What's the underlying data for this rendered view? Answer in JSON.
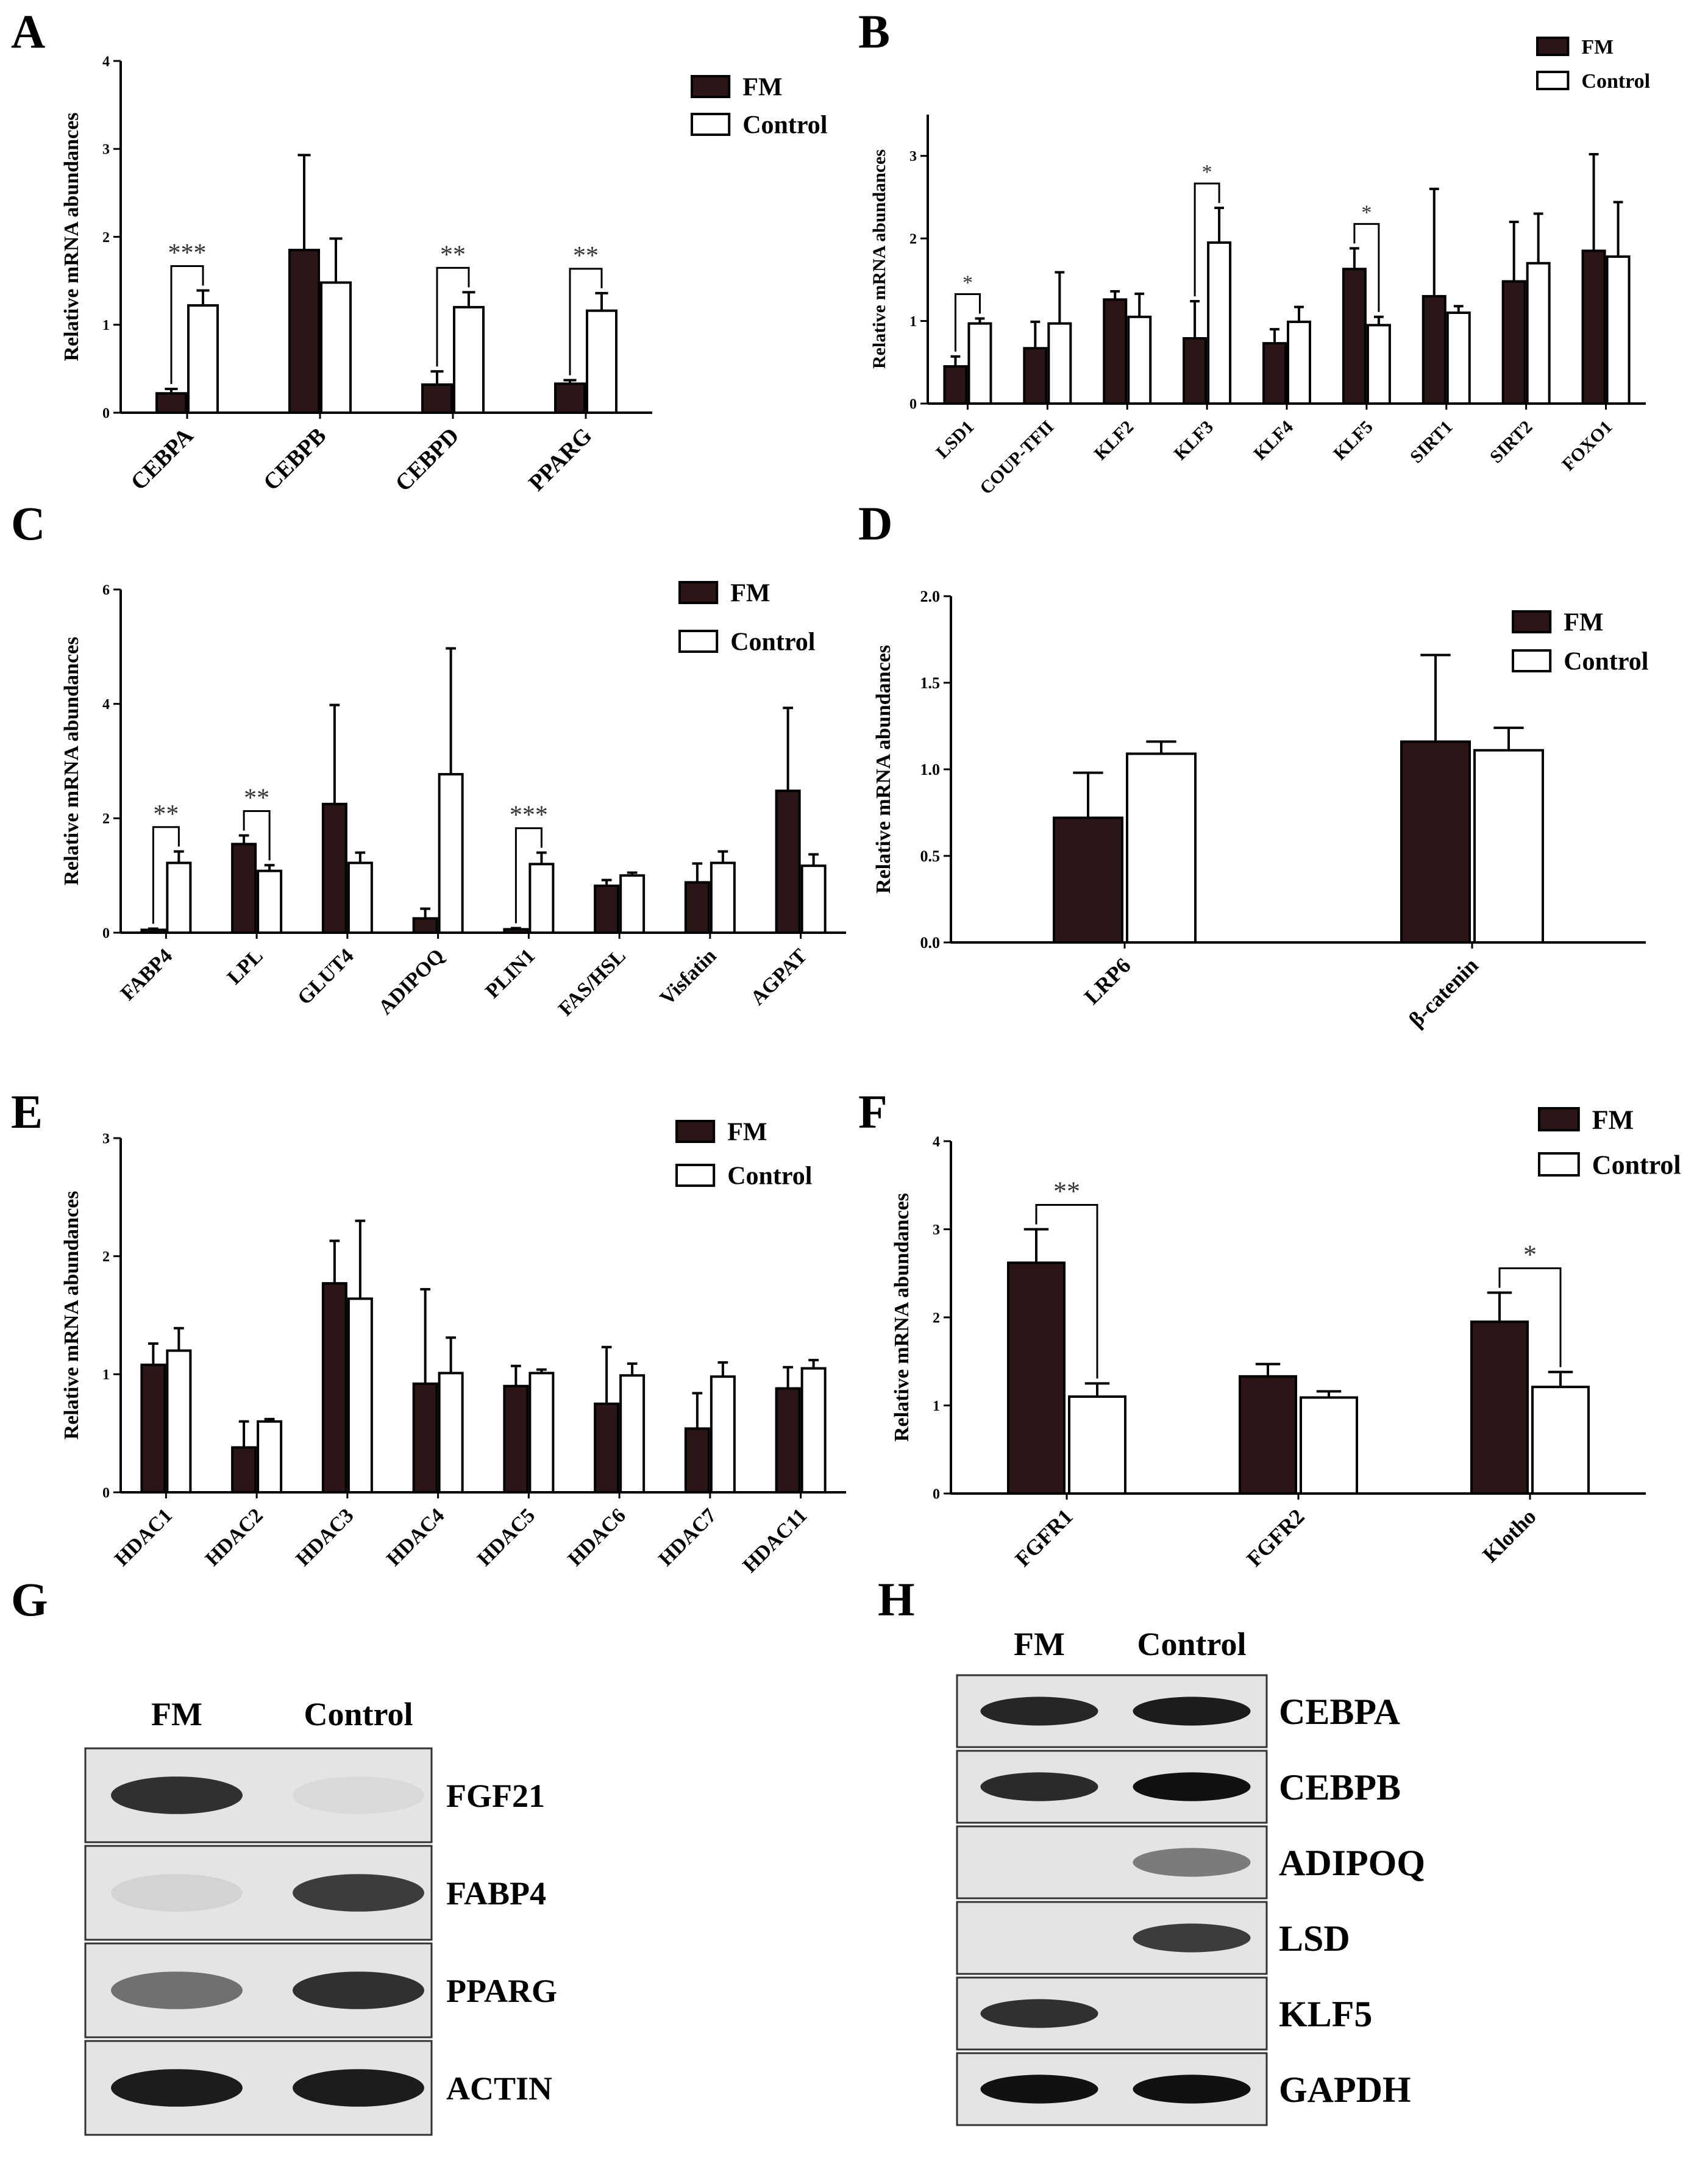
{
  "colors": {
    "fm": "#2a1616",
    "control": "#ffffff",
    "axis": "#000000",
    "sig": "#333333"
  },
  "panel_labels": [
    "A",
    "B",
    "C",
    "D",
    "E",
    "F",
    "G",
    "H"
  ],
  "chart_data": [
    {
      "panel": "A",
      "type": "bar",
      "ylabel": "Relative mRNA abundances",
      "xlabel": "",
      "ylim": [
        0,
        4
      ],
      "yticks": [
        "0",
        "1",
        "2",
        "3",
        "4"
      ],
      "legend_position": "top-right",
      "legend_labels": [
        "FM",
        "Control"
      ],
      "categories": [
        "CEBPA",
        "CEBPB",
        "CEBPD",
        "PPARG"
      ],
      "series": [
        {
          "name": "FM",
          "values": [
            0.22,
            1.85,
            0.32,
            0.33
          ],
          "err": [
            0.05,
            1.08,
            0.15,
            0.04
          ]
        },
        {
          "name": "Control",
          "values": [
            1.22,
            1.48,
            1.2,
            1.16
          ],
          "err": [
            0.17,
            0.5,
            0.17,
            0.2
          ]
        }
      ],
      "significance": [
        {
          "category": "CEBPA",
          "label": "***"
        },
        {
          "category": "CEBPD",
          "label": "**"
        },
        {
          "category": "PPARG",
          "label": "**"
        }
      ]
    },
    {
      "panel": "B",
      "type": "bar",
      "ylabel": "Relative mRNA abundances",
      "xlabel": "",
      "ylim": [
        0,
        3.5
      ],
      "yticks": [
        "0",
        "1",
        "2",
        "3"
      ],
      "legend_position": "top-right",
      "legend_labels": [
        "FM",
        "Control"
      ],
      "categories": [
        "LSD1",
        "COUP-TFII",
        "KLF2",
        "KLF3",
        "KLF4",
        "KLF5",
        "SIRT1",
        "SIRT2",
        "FOXO1"
      ],
      "series": [
        {
          "name": "FM",
          "values": [
            0.45,
            0.67,
            1.26,
            0.79,
            0.73,
            1.63,
            1.3,
            1.48,
            1.85
          ],
          "err": [
            0.12,
            0.32,
            0.1,
            0.45,
            0.17,
            0.25,
            1.3,
            0.72,
            1.17
          ]
        },
        {
          "name": "Control",
          "values": [
            0.97,
            0.97,
            1.05,
            1.95,
            0.99,
            0.95,
            1.1,
            1.7,
            1.78
          ],
          "err": [
            0.06,
            0.62,
            0.28,
            0.42,
            0.18,
            0.1,
            0.08,
            0.6,
            0.66
          ]
        }
      ],
      "significance": [
        {
          "category": "LSD1",
          "label": "*"
        },
        {
          "category": "KLF3",
          "label": "*"
        },
        {
          "category": "KLF5",
          "label": "*"
        }
      ]
    },
    {
      "panel": "C",
      "type": "bar",
      "ylabel": "Relative mRNA abundances",
      "xlabel": "",
      "ylim": [
        0,
        6
      ],
      "yticks": [
        "0",
        "2",
        "4",
        "6"
      ],
      "legend_position": "top-right",
      "legend_labels": [
        "FM",
        "Control"
      ],
      "categories": [
        "FABP4",
        "LPL",
        "GLUT4",
        "ADIPOQ",
        "PLIN1",
        "FAS/HSL",
        "Visfatin",
        "AGPAT"
      ],
      "series": [
        {
          "name": "FM",
          "values": [
            0.05,
            1.55,
            2.25,
            0.25,
            0.06,
            0.82,
            0.88,
            2.48
          ],
          "err": [
            0.02,
            0.15,
            1.73,
            0.17,
            0.02,
            0.1,
            0.33,
            1.45
          ]
        },
        {
          "name": "Control",
          "values": [
            1.22,
            1.08,
            1.22,
            2.77,
            1.2,
            1.0,
            1.22,
            1.17
          ],
          "err": [
            0.2,
            0.1,
            0.18,
            2.2,
            0.2,
            0.05,
            0.2,
            0.2
          ]
        }
      ],
      "significance": [
        {
          "category": "FABP4",
          "label": "**"
        },
        {
          "category": "LPL",
          "label": "**"
        },
        {
          "category": "PLIN1",
          "label": "***"
        }
      ]
    },
    {
      "panel": "D",
      "type": "bar",
      "ylabel": "Relative mRNA abundances",
      "xlabel": "",
      "ylim": [
        0,
        2.0
      ],
      "yticks": [
        "0.0",
        "0.5",
        "1.0",
        "1.5",
        "2.0"
      ],
      "legend_position": "top-right",
      "legend_labels": [
        "FM",
        "Control"
      ],
      "categories": [
        "LRP6",
        "β-catenin"
      ],
      "series": [
        {
          "name": "FM",
          "values": [
            0.72,
            1.16
          ],
          "err": [
            0.26,
            0.5
          ]
        },
        {
          "name": "Control",
          "values": [
            1.09,
            1.11
          ],
          "err": [
            0.07,
            0.13
          ]
        }
      ],
      "significance": []
    },
    {
      "panel": "E",
      "type": "bar",
      "ylabel": "Relative mRNA abundances",
      "xlabel": "",
      "ylim": [
        0,
        3
      ],
      "yticks": [
        "0",
        "1",
        "2",
        "3"
      ],
      "legend_position": "top-right",
      "legend_labels": [
        "FM",
        "Control"
      ],
      "categories": [
        "HDAC1",
        "HDAC2",
        "HDAC3",
        "HDAC4",
        "HDAC5",
        "HDAC6",
        "HDAC7",
        "HDAC11"
      ],
      "series": [
        {
          "name": "FM",
          "values": [
            1.08,
            0.38,
            1.77,
            0.92,
            0.9,
            0.75,
            0.54,
            0.88
          ],
          "err": [
            0.18,
            0.22,
            0.36,
            0.8,
            0.17,
            0.48,
            0.3,
            0.18
          ]
        },
        {
          "name": "Control",
          "values": [
            1.2,
            0.6,
            1.64,
            1.01,
            1.01,
            0.99,
            0.98,
            1.05
          ],
          "err": [
            0.19,
            0.02,
            0.66,
            0.3,
            0.03,
            0.1,
            0.12,
            0.07
          ]
        }
      ],
      "significance": []
    },
    {
      "panel": "F",
      "type": "bar",
      "ylabel": "Relative mRNA abundances",
      "xlabel": "",
      "ylim": [
        0,
        4
      ],
      "yticks": [
        "0",
        "1",
        "2",
        "3",
        "4"
      ],
      "legend_position": "top-right",
      "legend_labels": [
        "FM",
        "Control"
      ],
      "categories": [
        "FGFR1",
        "FGFR2",
        "Klotho"
      ],
      "series": [
        {
          "name": "FM",
          "values": [
            2.62,
            1.33,
            1.95
          ],
          "err": [
            0.38,
            0.14,
            0.33
          ]
        },
        {
          "name": "Control",
          "values": [
            1.1,
            1.09,
            1.21
          ],
          "err": [
            0.15,
            0.07,
            0.17
          ]
        }
      ],
      "significance": [
        {
          "category": "FGFR1",
          "label": "**"
        },
        {
          "category": "Klotho",
          "label": "*"
        }
      ]
    }
  ],
  "blots": [
    {
      "panel": "G",
      "lane_labels": [
        "FM",
        "Control"
      ],
      "bands": [
        {
          "label": "FGF21",
          "fm": 0.85,
          "control": 0.05
        },
        {
          "label": "FABP4",
          "fm": 0.08,
          "control": 0.8
        },
        {
          "label": "PPARG",
          "fm": 0.55,
          "control": 0.85
        },
        {
          "label": "ACTIN",
          "fm": 0.95,
          "control": 0.95
        }
      ]
    },
    {
      "panel": "H",
      "lane_labels": [
        "FM",
        "Control"
      ],
      "bands": [
        {
          "label": "CEBPA",
          "fm": 0.9,
          "control": 0.95
        },
        {
          "label": "CEBPB",
          "fm": 0.88,
          "control": 1.0
        },
        {
          "label": "ADIPOQ",
          "fm": 0.0,
          "control": 0.5
        },
        {
          "label": "LSD",
          "fm": 0.0,
          "control": 0.8
        },
        {
          "label": "KLF5",
          "fm": 0.85,
          "control": 0.0
        },
        {
          "label": "GAPDH",
          "fm": 1.0,
          "control": 1.0
        }
      ]
    }
  ]
}
